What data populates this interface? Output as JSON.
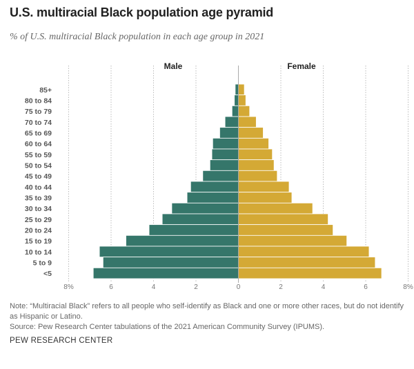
{
  "title": "U.S. multiracial Black population age pyramid",
  "subtitle": "% of U.S. multiracial Black population in each age group in 2021",
  "note": "Note: “Multiracial Black” refers to all people who self-identify as Black and one or more other races, but do not identify as Hispanic or Latino.",
  "source": "Source: Pew Research Center tabulations of the 2021 American Community Survey (IPUMS).",
  "footer": "PEW RESEARCH CENTER",
  "chart_data": {
    "type": "bar",
    "orientation": "horizontal-pyramid",
    "title": "U.S. multiracial Black population age pyramid",
    "xlabel": "",
    "ylabel": "",
    "xlim": [
      -8,
      8
    ],
    "grid": true,
    "x_ticks": [
      {
        "v": -8,
        "label": "8%"
      },
      {
        "v": -6,
        "label": "6"
      },
      {
        "v": -4,
        "label": "4"
      },
      {
        "v": -2,
        "label": "2"
      },
      {
        "v": 0,
        "label": "0"
      },
      {
        "v": 2,
        "label": "2"
      },
      {
        "v": 4,
        "label": "4"
      },
      {
        "v": 6,
        "label": "6"
      },
      {
        "v": 8,
        "label": "8%"
      }
    ],
    "categories": [
      "85+",
      "80 to 84",
      "75 to 79",
      "70 to 74",
      "65 to 69",
      "60 to 64",
      "55 to 59",
      "50 to 54",
      "45 to 49",
      "40 to 44",
      "35 to 39",
      "30 to 34",
      "25 to 29",
      "20 to 24",
      "15 to 19",
      "10 to 14",
      "5 to 9",
      "<5"
    ],
    "series": [
      {
        "name": "Male",
        "color": "#35766a",
        "values": [
          0.15,
          0.19,
          0.3,
          0.63,
          0.88,
          1.21,
          1.25,
          1.34,
          1.68,
          2.25,
          2.42,
          3.14,
          3.59,
          4.21,
          5.3,
          6.55,
          6.38,
          6.84
        ]
      },
      {
        "name": "Female",
        "color": "#d4a935",
        "values": [
          0.28,
          0.35,
          0.53,
          0.84,
          1.17,
          1.43,
          1.6,
          1.68,
          1.83,
          2.39,
          2.52,
          3.5,
          4.23,
          4.46,
          5.11,
          6.16,
          6.45,
          6.75
        ]
      }
    ]
  }
}
